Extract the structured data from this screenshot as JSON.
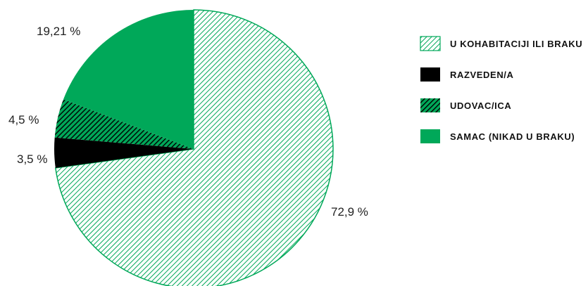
{
  "chart_data": {
    "type": "pie",
    "title": "",
    "slices": [
      {
        "label": "U KOHABITACIJI ILI BRAKU",
        "value": 72.9,
        "display": "72,9 %",
        "fill": "hatch-green"
      },
      {
        "label": "RAZVEDEN/A",
        "value": 3.5,
        "display": "3,5 %",
        "fill": "solid-black"
      },
      {
        "label": "UDOVAC/ICA",
        "value": 4.5,
        "display": "4,5 %",
        "fill": "hatch-black-green"
      },
      {
        "label": "SAMAC (NIKAD U BRAKU)",
        "value": 19.21,
        "display": "19,21 %",
        "fill": "solid-green"
      }
    ],
    "legend_position": "right"
  },
  "colors": {
    "green": "#00a859",
    "black": "#000000",
    "white": "#ffffff"
  }
}
